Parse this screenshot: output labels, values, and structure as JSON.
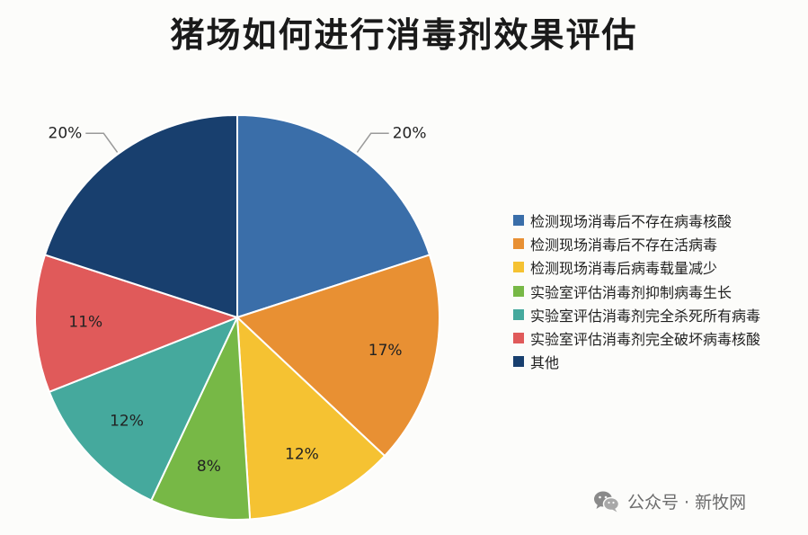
{
  "chart_data": {
    "type": "pie",
    "title": "猪场如何进行消毒剂效果评估",
    "legend_position": "right",
    "slices": [
      {
        "label": "检测现场消毒后不存在病毒核酸",
        "value": 20,
        "value_label": "20%",
        "color": "#3a6ea9"
      },
      {
        "label": "检测现场消毒后不存在活病毒",
        "value": 17,
        "value_label": "17%",
        "color": "#e89033"
      },
      {
        "label": "检测现场消毒后病毒载量减少",
        "value": 12,
        "value_label": "12%",
        "color": "#f5c232"
      },
      {
        "label": "实验室评估消毒剂抑制病毒生长",
        "value": 8,
        "value_label": "8%",
        "color": "#77b846"
      },
      {
        "label": "实验室评估消毒剂完全杀死所有病毒",
        "value": 12,
        "value_label": "12%",
        "color": "#45a99d"
      },
      {
        "label": "实验室评估消毒剂完全破坏病毒核酸",
        "value": 11,
        "value_label": "11%",
        "color": "#e05a5a"
      },
      {
        "label": "其他",
        "value": 20,
        "value_label": "20%",
        "color": "#183f6e"
      }
    ]
  },
  "watermark": {
    "icon": "wechat-icon",
    "text": "公众号 · 新牧网"
  }
}
